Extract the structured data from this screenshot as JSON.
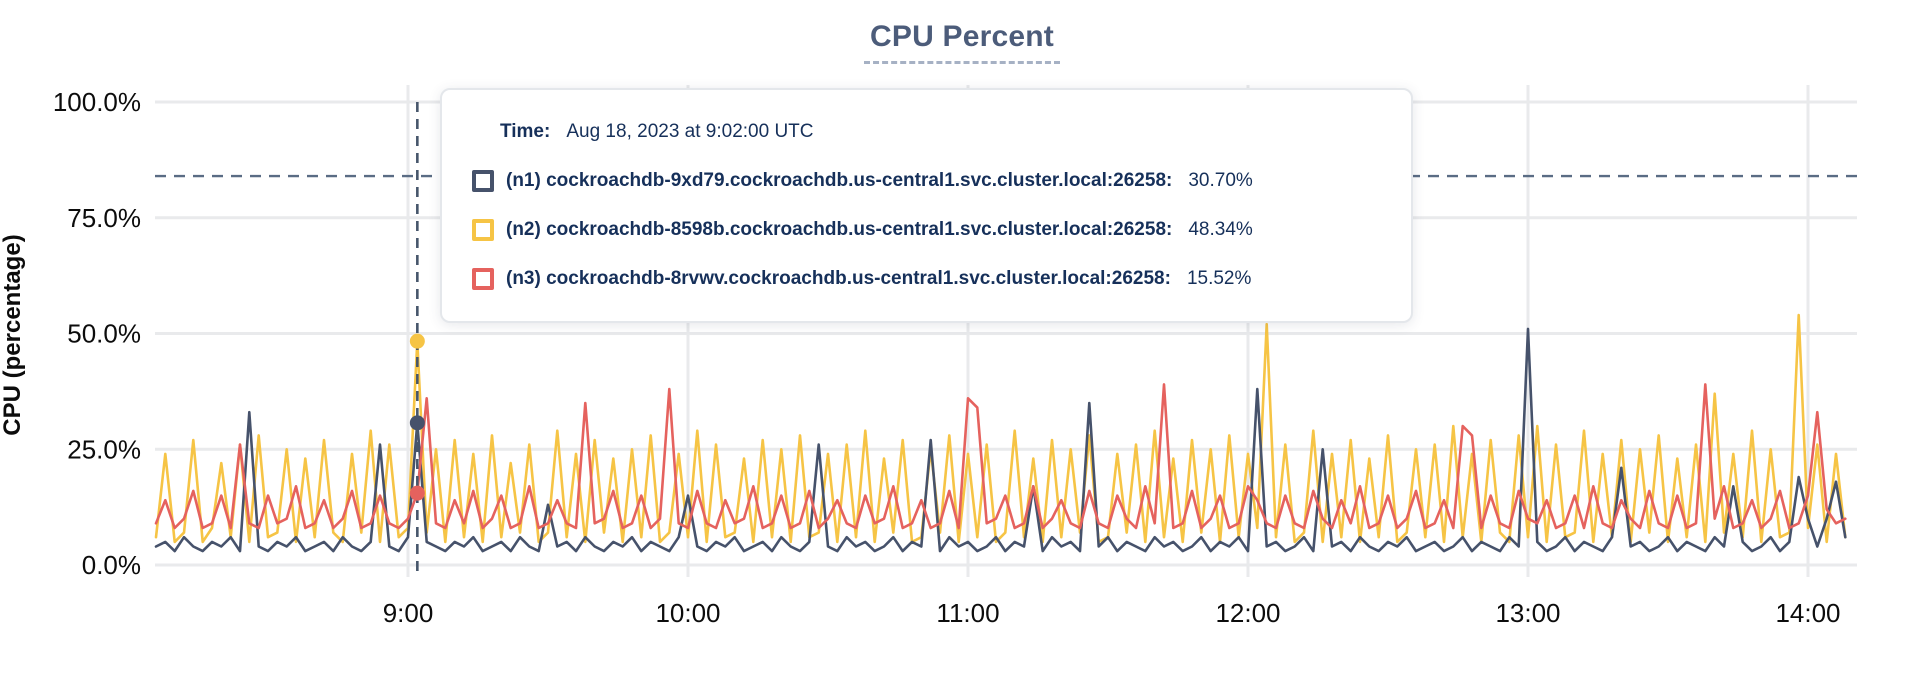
{
  "chart_data": {
    "type": "line",
    "title": "CPU Percent",
    "ylabel": "CPU (percentage)",
    "grid": true,
    "legend_position": "tooltip-overlay",
    "x_axis": {
      "unit": "time (UTC)",
      "start_min": 486,
      "step_min": 2,
      "end_min": 848,
      "ticks": [
        {
          "t": 540,
          "label": "9:00"
        },
        {
          "t": 600,
          "label": "10:00"
        },
        {
          "t": 660,
          "label": "11:00"
        },
        {
          "t": 720,
          "label": "12:00"
        },
        {
          "t": 780,
          "label": "13:00"
        },
        {
          "t": 840,
          "label": "14:00"
        }
      ]
    },
    "y_axis": {
      "lim": [
        0,
        100
      ],
      "ticks": [
        {
          "v": 100,
          "label": "100.0%"
        },
        {
          "v": 75,
          "label": "75.0%"
        },
        {
          "v": 50,
          "label": "50.0%"
        },
        {
          "v": 25,
          "label": "25.0%"
        },
        {
          "v": 0,
          "label": "0.0%"
        }
      ]
    },
    "threshold_percent": 84,
    "hover": {
      "index": 28,
      "time_min": 542,
      "time_label": "Aug 18, 2023 at 9:02:00 UTC"
    },
    "series": [
      {
        "id": "n1",
        "name": "(n1) cockroachdb-9xd79.cockroachdb.us-central1.svc.cluster.local:26258",
        "color": "#46526b",
        "hover_value": 30.7,
        "values": [
          4,
          5,
          3,
          6,
          4,
          3,
          5,
          4,
          6,
          3,
          33,
          4,
          3,
          5,
          4,
          6,
          3,
          4,
          5,
          3,
          6,
          4,
          3,
          5,
          26,
          4,
          3,
          6,
          30.7,
          5,
          4,
          3,
          5,
          4,
          6,
          3,
          4,
          5,
          3,
          6,
          4,
          3,
          13,
          4,
          5,
          3,
          6,
          4,
          3,
          5,
          4,
          6,
          3,
          5,
          4,
          3,
          6,
          15,
          4,
          3,
          5,
          4,
          6,
          3,
          4,
          5,
          3,
          6,
          4,
          3,
          5,
          26,
          4,
          3,
          6,
          4,
          5,
          3,
          4,
          6,
          3,
          5,
          4,
          27,
          3,
          6,
          4,
          5,
          3,
          4,
          6,
          3,
          5,
          4,
          17,
          3,
          6,
          4,
          5,
          3,
          35,
          4,
          6,
          3,
          5,
          4,
          3,
          6,
          4,
          5,
          3,
          4,
          6,
          3,
          5,
          4,
          6,
          3,
          38,
          4,
          5,
          3,
          4,
          6,
          3,
          25,
          4,
          5,
          3,
          6,
          4,
          3,
          5,
          4,
          6,
          3,
          4,
          5,
          3,
          4,
          6,
          3,
          5,
          4,
          3,
          6,
          4,
          51,
          5,
          3,
          4,
          6,
          3,
          5,
          4,
          3,
          6,
          21,
          4,
          5,
          3,
          4,
          6,
          3,
          5,
          4,
          3,
          6,
          4,
          17,
          5,
          3,
          4,
          6,
          3,
          5,
          19,
          10,
          4,
          10,
          18,
          6
        ]
      },
      {
        "id": "n2",
        "name": "(n2) cockroachdb-8598b.cockroachdb.us-central1.svc.cluster.local:26258",
        "color": "#f6c445",
        "hover_value": 48.34,
        "values": [
          6,
          24,
          5,
          7,
          27,
          5,
          8,
          22,
          6,
          26,
          5,
          28,
          6,
          7,
          25,
          5,
          23,
          6,
          27,
          7,
          5,
          24,
          7,
          29,
          5,
          26,
          6,
          8,
          48.34,
          7,
          25,
          5,
          27,
          6,
          24,
          5,
          28,
          6,
          22,
          7,
          26,
          5,
          7,
          29,
          6,
          24,
          5,
          27,
          7,
          23,
          5,
          25,
          6,
          28,
          5,
          7,
          24,
          6,
          29,
          5,
          26,
          6,
          7,
          23,
          5,
          27,
          6,
          25,
          5,
          28,
          6,
          7,
          24,
          5,
          26,
          6,
          29,
          5,
          23,
          7,
          27,
          5,
          6,
          25,
          7,
          28,
          5,
          24,
          6,
          26,
          5,
          7,
          29,
          6,
          23,
          5,
          27,
          6,
          25,
          7,
          28,
          5,
          6,
          24,
          7,
          26,
          5,
          29,
          6,
          23,
          5,
          27,
          7,
          25,
          5,
          28,
          6,
          24,
          8,
          52,
          6,
          26,
          5,
          7,
          29,
          5,
          24,
          6,
          27,
          5,
          23,
          6,
          28,
          5,
          7,
          25,
          6,
          26,
          5,
          30,
          6,
          24,
          5,
          27,
          7,
          5,
          28,
          6,
          30,
          5,
          26,
          6,
          7,
          29,
          5,
          24,
          6,
          27,
          5,
          25,
          7,
          28,
          5,
          23,
          6,
          26,
          5,
          37,
          7,
          24,
          6,
          29,
          5,
          25,
          6,
          7,
          54,
          8,
          26,
          5,
          24,
          6
        ]
      },
      {
        "id": "n3",
        "name": "(n3) cockroachdb-8rvwv.cockroachdb.us-central1.svc.cluster.local:26258",
        "color": "#e5625e",
        "hover_value": 15.52,
        "values": [
          9,
          14,
          8,
          10,
          16,
          8,
          9,
          15,
          8,
          26,
          9,
          8,
          15,
          9,
          10,
          17,
          8,
          9,
          14,
          8,
          10,
          16,
          8,
          9,
          15,
          9,
          8,
          10,
          15.52,
          36,
          9,
          8,
          14,
          9,
          16,
          8,
          10,
          15,
          8,
          9,
          17,
          8,
          9,
          14,
          9,
          8,
          35,
          9,
          10,
          16,
          8,
          9,
          15,
          8,
          10,
          38,
          9,
          8,
          16,
          9,
          8,
          14,
          9,
          10,
          17,
          8,
          9,
          15,
          8,
          9,
          16,
          8,
          10,
          14,
          9,
          8,
          15,
          9,
          10,
          17,
          8,
          9,
          14,
          8,
          9,
          16,
          8,
          36,
          34,
          9,
          10,
          15,
          8,
          9,
          17,
          8,
          10,
          14,
          9,
          8,
          16,
          9,
          8,
          15,
          10,
          8,
          17,
          9,
          39,
          8,
          9,
          16,
          8,
          10,
          15,
          8,
          9,
          17,
          14,
          9,
          8,
          15,
          9,
          8,
          16,
          10,
          8,
          14,
          9,
          17,
          8,
          9,
          15,
          8,
          10,
          16,
          8,
          9,
          14,
          8,
          30,
          28,
          8,
          15,
          9,
          8,
          16,
          10,
          9,
          14,
          8,
          9,
          15,
          8,
          17,
          9,
          8,
          14,
          10,
          8,
          16,
          9,
          8,
          15,
          8,
          9,
          39,
          10,
          17,
          8,
          9,
          14,
          8,
          10,
          16,
          8,
          9,
          15,
          33,
          12,
          9,
          10
        ]
      }
    ]
  },
  "tooltip": {
    "time_label": "Time:",
    "time_value": "Aug 18, 2023 at 9:02:00 UTC",
    "rows": [
      {
        "label": "(n1) cockroachdb-9xd79.cockroachdb.us-central1.svc.cluster.local:26258:",
        "value": "30.70%",
        "color": "#46526b"
      },
      {
        "label": "(n2) cockroachdb-8598b.cockroachdb.us-central1.svc.cluster.local:26258:",
        "value": "48.34%",
        "color": "#f6c445"
      },
      {
        "label": "(n3) cockroachdb-8rvwv.cockroachdb.us-central1.svc.cluster.local:26258:",
        "value": "15.52%",
        "color": "#e5625e"
      }
    ]
  },
  "colors": {
    "title": "#4c5c7a",
    "title_underline": "#a6b1c4",
    "axis_text": "#0c0c0c",
    "gridline": "#e9eaec",
    "threshold_line": "#5a6c84",
    "hover_line": "#47566b",
    "tooltip_text": "#16305a",
    "tooltip_border": "#e4e7eb"
  }
}
